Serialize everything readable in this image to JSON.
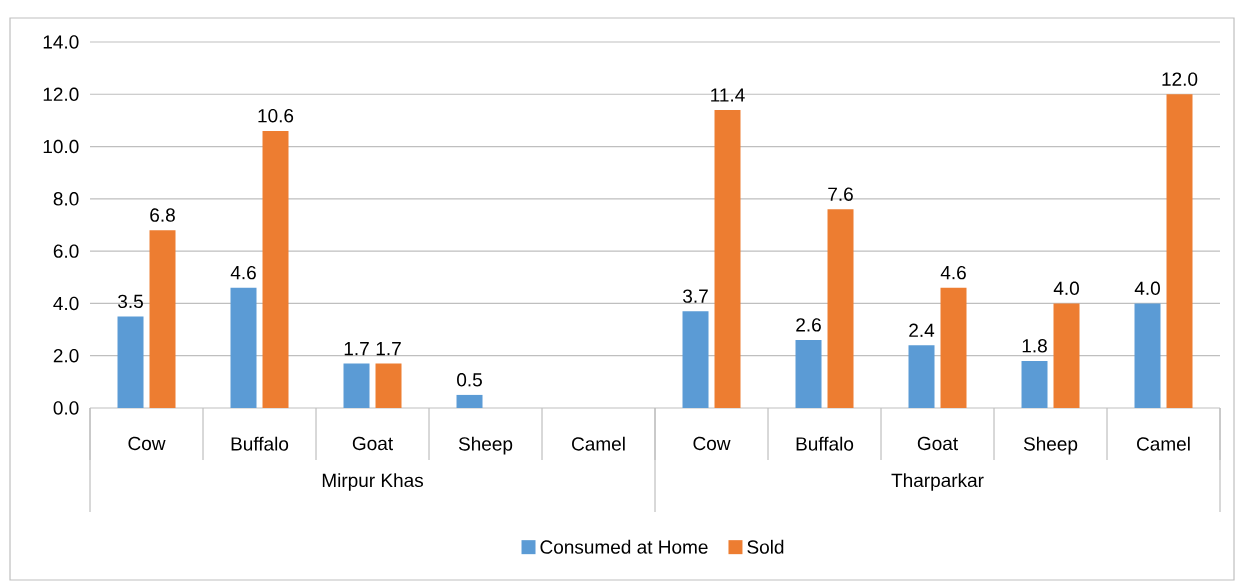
{
  "chart_data": {
    "type": "bar",
    "categories": [
      "Cow",
      "Buffalo",
      "Goat",
      "Sheep",
      "Camel",
      "Cow",
      "Buffalo",
      "Goat",
      "Sheep",
      "Camel"
    ],
    "series": [
      {
        "name": "Consumed at Home",
        "color": "#5b9bd5",
        "values": [
          3.5,
          4.6,
          1.7,
          0.5,
          null,
          3.7,
          2.6,
          2.4,
          1.8,
          4.0
        ],
        "value_labels": [
          "3.5",
          "4.6",
          "1.7",
          "0.5",
          null,
          "3.7",
          "2.6",
          "2.4",
          "1.8",
          "4.0"
        ]
      },
      {
        "name": "Sold",
        "color": "#ed7d31",
        "values": [
          6.8,
          10.6,
          1.7,
          null,
          null,
          11.4,
          7.6,
          4.6,
          4.0,
          12.0
        ],
        "value_labels": [
          "6.8",
          "10.6",
          "1.7",
          null,
          null,
          "11.4",
          "7.6",
          "4.6",
          "4.0",
          "12.0"
        ]
      }
    ],
    "annotations": [
      "Mirpur Khas",
      "Tharparkar"
    ],
    "ylim": [
      0,
      14
    ],
    "yticks": [
      {
        "value": 0,
        "label": "0.0"
      },
      {
        "value": 2,
        "label": "2.0"
      },
      {
        "value": 4,
        "label": "4.0"
      },
      {
        "value": 6,
        "label": "6.0"
      },
      {
        "value": 8,
        "label": "8.0"
      },
      {
        "value": 10,
        "label": "10.0"
      },
      {
        "value": 12,
        "label": "12.0"
      },
      {
        "value": 14,
        "label": "14.0"
      }
    ],
    "grid": "y",
    "legend": "bottom"
  }
}
